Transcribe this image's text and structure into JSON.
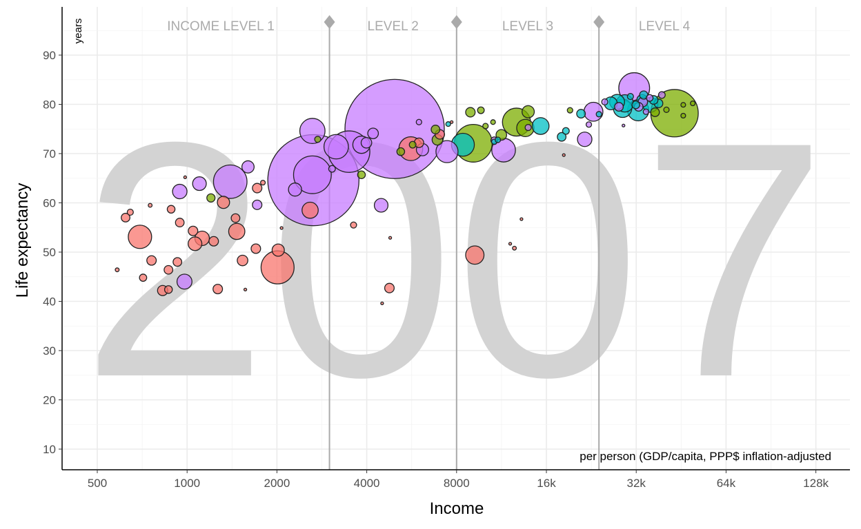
{
  "chart_data": {
    "type": "scatter",
    "xlabel": "Income",
    "ylabel": "Life expectancy",
    "y_unit_label": "years",
    "caption": "per person (GDP/capita, PPP$ inflation-adjusted",
    "year_label": "2007",
    "x_scale": "log2",
    "xlim": [
      400,
      160000
    ],
    "ylim": [
      5,
      98
    ],
    "x_ticks": [
      500,
      1000,
      2000,
      4000,
      8000,
      16000,
      32000,
      64000,
      128000
    ],
    "x_tick_labels": [
      "500",
      "1000",
      "2000",
      "4000",
      "8000",
      "16k",
      "32k",
      "64k",
      "128k"
    ],
    "y_ticks": [
      10,
      20,
      30,
      40,
      50,
      60,
      70,
      80,
      90
    ],
    "y_tick_labels": [
      "10",
      "20",
      "30",
      "40",
      "50",
      "60",
      "70",
      "80",
      "90"
    ],
    "grid": true,
    "income_levels": [
      {
        "label": "INCOME LEVEL 1",
        "upper": 3000
      },
      {
        "label": "LEVEL 2",
        "upper": 8000
      },
      {
        "label": "LEVEL 3",
        "upper": 24000
      },
      {
        "label": "LEVEL 4",
        "upper": null
      }
    ],
    "level_line_color": "#aaaaaa",
    "group_colors": {
      "a": "#F8766D",
      "b": "#7CAE00",
      "c": "#00BFC4",
      "d": "#C77CFF"
    },
    "size_variable": "population (millions)",
    "points": [
      {
        "x": 583,
        "y": 46.4,
        "pop": 2,
        "g": "a"
      },
      {
        "x": 622,
        "y": 57.0,
        "pop": 10,
        "g": "a"
      },
      {
        "x": 645,
        "y": 58.1,
        "pop": 5,
        "g": "a"
      },
      {
        "x": 695,
        "y": 53.1,
        "pop": 73,
        "g": "a"
      },
      {
        "x": 712,
        "y": 44.8,
        "pop": 7,
        "g": "a"
      },
      {
        "x": 752,
        "y": 59.5,
        "pop": 2,
        "g": "a"
      },
      {
        "x": 760,
        "y": 48.3,
        "pop": 12,
        "g": "a"
      },
      {
        "x": 884,
        "y": 58.7,
        "pop": 8,
        "g": "a"
      },
      {
        "x": 828,
        "y": 42.2,
        "pop": 14,
        "g": "a"
      },
      {
        "x": 866,
        "y": 42.4,
        "pop": 8,
        "g": "a"
      },
      {
        "x": 866,
        "y": 46.4,
        "pop": 10,
        "g": "a"
      },
      {
        "x": 928,
        "y": 48.0,
        "pop": 10,
        "g": "a"
      },
      {
        "x": 945,
        "y": 56.0,
        "pop": 10,
        "g": "a"
      },
      {
        "x": 985,
        "y": 65.2,
        "pop": 1,
        "g": "a"
      },
      {
        "x": 1047,
        "y": 54.3,
        "pop": 12,
        "g": "a"
      },
      {
        "x": 1063,
        "y": 51.7,
        "pop": 25,
        "g": "a"
      },
      {
        "x": 1123,
        "y": 52.8,
        "pop": 28,
        "g": "a"
      },
      {
        "x": 1228,
        "y": 52.2,
        "pop": 12,
        "g": "a"
      },
      {
        "x": 1267,
        "y": 42.5,
        "pop": 12,
        "g": "a"
      },
      {
        "x": 1324,
        "y": 60.1,
        "pop": 20,
        "g": "a"
      },
      {
        "x": 1453,
        "y": 56.9,
        "pop": 10,
        "g": "a"
      },
      {
        "x": 1467,
        "y": 54.2,
        "pop": 35,
        "g": "a"
      },
      {
        "x": 1534,
        "y": 48.3,
        "pop": 15,
        "g": "a"
      },
      {
        "x": 1567,
        "y": 42.4,
        "pop": 1,
        "g": "a"
      },
      {
        "x": 1700,
        "y": 50.7,
        "pop": 12,
        "g": "a"
      },
      {
        "x": 1717,
        "y": 63.0,
        "pop": 12,
        "g": "a"
      },
      {
        "x": 1795,
        "y": 64.1,
        "pop": 3,
        "g": "a"
      },
      {
        "x": 2020,
        "y": 50.4,
        "pop": 20,
        "g": "a"
      },
      {
        "x": 2010,
        "y": 46.9,
        "pop": 146,
        "g": "a"
      },
      {
        "x": 2073,
        "y": 54.9,
        "pop": 0.5,
        "g": "a"
      },
      {
        "x": 2584,
        "y": 58.5,
        "pop": 35,
        "g": "a"
      },
      {
        "x": 3613,
        "y": 55.5,
        "pop": 5,
        "g": "a"
      },
      {
        "x": 4793,
        "y": 52.9,
        "pop": 1,
        "g": "a"
      },
      {
        "x": 4765,
        "y": 42.7,
        "pop": 12,
        "g": "a"
      },
      {
        "x": 4504,
        "y": 39.6,
        "pop": 1,
        "g": "a"
      },
      {
        "x": 5620,
        "y": 71.0,
        "pop": 76,
        "g": "a"
      },
      {
        "x": 5985,
        "y": 72.2,
        "pop": 12,
        "g": "a"
      },
      {
        "x": 7030,
        "y": 73.9,
        "pop": 12,
        "g": "a"
      },
      {
        "x": 7700,
        "y": 76.4,
        "pop": 1,
        "g": "a"
      },
      {
        "x": 9210,
        "y": 49.4,
        "pop": 45,
        "g": "a"
      },
      {
        "x": 13200,
        "y": 56.7,
        "pop": 1,
        "g": "a"
      },
      {
        "x": 12100,
        "y": 51.7,
        "pop": 1,
        "g": "a"
      },
      {
        "x": 12500,
        "y": 50.8,
        "pop": 2,
        "g": "a"
      },
      {
        "x": 18300,
        "y": 69.7,
        "pop": 1,
        "g": "a"
      },
      {
        "x": 1202,
        "y": 61.0,
        "pop": 9,
        "g": "b"
      },
      {
        "x": 2740,
        "y": 72.9,
        "pop": 5,
        "g": "b"
      },
      {
        "x": 3840,
        "y": 65.7,
        "pop": 8,
        "g": "b"
      },
      {
        "x": 5200,
        "y": 70.4,
        "pop": 8,
        "g": "b"
      },
      {
        "x": 5700,
        "y": 71.8,
        "pop": 6,
        "g": "b"
      },
      {
        "x": 6800,
        "y": 74.9,
        "pop": 10,
        "g": "b"
      },
      {
        "x": 6900,
        "y": 72.8,
        "pop": 15,
        "g": "b"
      },
      {
        "x": 8900,
        "y": 78.4,
        "pop": 12,
        "g": "b"
      },
      {
        "x": 9650,
        "y": 78.8,
        "pop": 6,
        "g": "b"
      },
      {
        "x": 9100,
        "y": 72.1,
        "pop": 190,
        "g": "b"
      },
      {
        "x": 12700,
        "y": 76.4,
        "pop": 105,
        "g": "b"
      },
      {
        "x": 13600,
        "y": 75.2,
        "pop": 40,
        "g": "b"
      },
      {
        "x": 13900,
        "y": 78.5,
        "pop": 20,
        "g": "b"
      },
      {
        "x": 11300,
        "y": 73.8,
        "pop": 15,
        "g": "b"
      },
      {
        "x": 10000,
        "y": 75.6,
        "pop": 4,
        "g": "b"
      },
      {
        "x": 10600,
        "y": 76.4,
        "pop": 3,
        "g": "b"
      },
      {
        "x": 19200,
        "y": 78.8,
        "pop": 4,
        "g": "b"
      },
      {
        "x": 43000,
        "y": 78.2,
        "pop": 301,
        "g": "b"
      },
      {
        "x": 40400,
        "y": 78.9,
        "pop": 4,
        "g": "b"
      },
      {
        "x": 46000,
        "y": 79.9,
        "pop": 3,
        "g": "b"
      },
      {
        "x": 49500,
        "y": 80.2,
        "pop": 3,
        "g": "b"
      },
      {
        "x": 46000,
        "y": 77.7,
        "pop": 3,
        "g": "b"
      },
      {
        "x": 37000,
        "y": 78.4,
        "pop": 10,
        "g": "b"
      },
      {
        "x": 7500,
        "y": 76.0,
        "pop": 3,
        "g": "c"
      },
      {
        "x": 8400,
        "y": 71.8,
        "pop": 70,
        "g": "c"
      },
      {
        "x": 10700,
        "y": 72.4,
        "pop": 4,
        "g": "c"
      },
      {
        "x": 11000,
        "y": 72.8,
        "pop": 4,
        "g": "c"
      },
      {
        "x": 15300,
        "y": 75.6,
        "pop": 38,
        "g": "c"
      },
      {
        "x": 18000,
        "y": 73.4,
        "pop": 10,
        "g": "c"
      },
      {
        "x": 18600,
        "y": 74.6,
        "pop": 6,
        "g": "c"
      },
      {
        "x": 20900,
        "y": 78.1,
        "pop": 10,
        "g": "c"
      },
      {
        "x": 24000,
        "y": 78.0,
        "pop": 4,
        "g": "c"
      },
      {
        "x": 26300,
        "y": 80.2,
        "pop": 22,
        "g": "c"
      },
      {
        "x": 27600,
        "y": 80.5,
        "pop": 30,
        "g": "c"
      },
      {
        "x": 29300,
        "y": 80.2,
        "pop": 40,
        "g": "c"
      },
      {
        "x": 28800,
        "y": 79.2,
        "pop": 45,
        "g": "c"
      },
      {
        "x": 32500,
        "y": 78.8,
        "pop": 60,
        "g": "c"
      },
      {
        "x": 35700,
        "y": 79.9,
        "pop": 30,
        "g": "c"
      },
      {
        "x": 38000,
        "y": 80.2,
        "pop": 10,
        "g": "c"
      },
      {
        "x": 33500,
        "y": 80.9,
        "pop": 15,
        "g": "c"
      },
      {
        "x": 31900,
        "y": 79.9,
        "pop": 8,
        "g": "c"
      },
      {
        "x": 36600,
        "y": 80.9,
        "pop": 10,
        "g": "c"
      },
      {
        "x": 30600,
        "y": 81.6,
        "pop": 5,
        "g": "c"
      },
      {
        "x": 33900,
        "y": 81.9,
        "pop": 9,
        "g": "c"
      },
      {
        "x": 980,
        "y": 44.0,
        "pop": 30,
        "g": "d"
      },
      {
        "x": 945,
        "y": 62.3,
        "pop": 28,
        "g": "d"
      },
      {
        "x": 1100,
        "y": 63.9,
        "pop": 25,
        "g": "d"
      },
      {
        "x": 1395,
        "y": 64.3,
        "pop": 150,
        "g": "d"
      },
      {
        "x": 1600,
        "y": 67.3,
        "pop": 20,
        "g": "d"
      },
      {
        "x": 1717,
        "y": 59.6,
        "pop": 12,
        "g": "d"
      },
      {
        "x": 2630,
        "y": 74.6,
        "pop": 85,
        "g": "d"
      },
      {
        "x": 2650,
        "y": 64.6,
        "pop": 1110,
        "g": "d"
      },
      {
        "x": 2630,
        "y": 65.7,
        "pop": 190,
        "g": "d"
      },
      {
        "x": 2300,
        "y": 62.7,
        "pop": 23,
        "g": "d"
      },
      {
        "x": 3060,
        "y": 66.9,
        "pop": 6,
        "g": "d"
      },
      {
        "x": 3160,
        "y": 71.4,
        "pop": 80,
        "g": "d"
      },
      {
        "x": 3490,
        "y": 70.4,
        "pop": 230,
        "g": "d"
      },
      {
        "x": 3840,
        "y": 71.8,
        "pop": 40,
        "g": "d"
      },
      {
        "x": 3990,
        "y": 72.2,
        "pop": 15,
        "g": "d"
      },
      {
        "x": 4200,
        "y": 74.1,
        "pop": 15,
        "g": "d"
      },
      {
        "x": 4470,
        "y": 59.5,
        "pop": 25,
        "g": "d"
      },
      {
        "x": 4960,
        "y": 75.0,
        "pop": 1318,
        "g": "d"
      },
      {
        "x": 5985,
        "y": 76.4,
        "pop": 4,
        "g": "d"
      },
      {
        "x": 6150,
        "y": 70.8,
        "pop": 20,
        "g": "d"
      },
      {
        "x": 7430,
        "y": 70.4,
        "pop": 65,
        "g": "d"
      },
      {
        "x": 11500,
        "y": 70.7,
        "pop": 75,
        "g": "d"
      },
      {
        "x": 10700,
        "y": 72.7,
        "pop": 6,
        "g": "d"
      },
      {
        "x": 13900,
        "y": 75.3,
        "pop": 5,
        "g": "d"
      },
      {
        "x": 21500,
        "y": 72.9,
        "pop": 28,
        "g": "d"
      },
      {
        "x": 23000,
        "y": 78.5,
        "pop": 48,
        "g": "d"
      },
      {
        "x": 22200,
        "y": 75.9,
        "pop": 4,
        "g": "d"
      },
      {
        "x": 25100,
        "y": 80.5,
        "pop": 5,
        "g": "d"
      },
      {
        "x": 28000,
        "y": 79.5,
        "pop": 10,
        "g": "d"
      },
      {
        "x": 29000,
        "y": 75.7,
        "pop": 1,
        "g": "d"
      },
      {
        "x": 31500,
        "y": 83.3,
        "pop": 127,
        "g": "d"
      },
      {
        "x": 32600,
        "y": 79.5,
        "pop": 10,
        "g": "d"
      },
      {
        "x": 35500,
        "y": 81.3,
        "pop": 6,
        "g": "d"
      },
      {
        "x": 34500,
        "y": 78.5,
        "pop": 4,
        "g": "d"
      },
      {
        "x": 33700,
        "y": 80.5,
        "pop": 12,
        "g": "d"
      },
      {
        "x": 39000,
        "y": 81.9,
        "pop": 6,
        "g": "d"
      }
    ]
  }
}
